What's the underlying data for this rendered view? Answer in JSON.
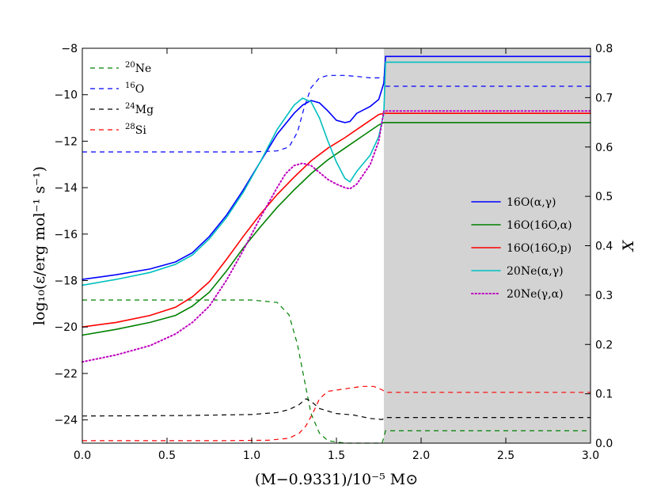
{
  "chart_data": {
    "type": "line",
    "xlabel": "(M−0.9331)/10⁻⁵ M⊙",
    "ylabel_left": "log₁₀(ε/erg mol⁻¹ s⁻¹)",
    "ylabel_right": "X",
    "xlim": [
      0.0,
      3.0
    ],
    "ylim_left": [
      -25.0,
      -8.0
    ],
    "ylim_right": [
      0.0,
      0.8
    ],
    "xticks": [
      "0.0",
      "0.5",
      "1.0",
      "1.5",
      "2.0",
      "2.5",
      "3.0"
    ],
    "yticks_left": [
      "-8",
      "-10",
      "-12",
      "-14",
      "-16",
      "-18",
      "-20",
      "-22",
      "-24"
    ],
    "yticks_right": [
      "0.0",
      "0.1",
      "0.2",
      "0.3",
      "0.4",
      "0.5",
      "0.6",
      "0.7",
      "0.8"
    ],
    "shaded_region": {
      "x_start": 1.78,
      "x_end": 3.0,
      "color": "#d3d3d3"
    },
    "rate_series": [
      {
        "name": "16O(α,γ)",
        "color": "#0000ff",
        "style": "solid",
        "x": [
          0,
          0.2,
          0.4,
          0.55,
          0.65,
          0.75,
          0.85,
          0.95,
          1.05,
          1.15,
          1.25,
          1.3,
          1.35,
          1.4,
          1.45,
          1.5,
          1.55,
          1.58,
          1.62,
          1.7,
          1.75,
          1.78,
          1.79,
          3.0
        ],
        "y": [
          -17.95,
          -17.75,
          -17.5,
          -17.2,
          -16.8,
          -16.1,
          -15.2,
          -14.1,
          -12.9,
          -11.7,
          -10.8,
          -10.45,
          -10.25,
          -10.35,
          -10.7,
          -11.1,
          -11.2,
          -11.15,
          -10.8,
          -10.5,
          -10.2,
          -9.5,
          -8.35,
          -8.35
        ]
      },
      {
        "name": "16O(16O,α)",
        "color": "#008000",
        "style": "solid",
        "x": [
          0,
          0.2,
          0.4,
          0.55,
          0.65,
          0.75,
          0.85,
          0.95,
          1.05,
          1.15,
          1.25,
          1.35,
          1.45,
          1.55,
          1.65,
          1.75,
          1.78,
          3.0
        ],
        "y": [
          -20.35,
          -20.1,
          -19.8,
          -19.5,
          -19.1,
          -18.5,
          -17.6,
          -16.6,
          -15.7,
          -14.85,
          -14.1,
          -13.4,
          -12.8,
          -12.3,
          -11.8,
          -11.3,
          -11.2,
          -11.2
        ]
      },
      {
        "name": "16O(16O,p)",
        "color": "#ff0000",
        "style": "solid",
        "x": [
          0,
          0.2,
          0.4,
          0.55,
          0.65,
          0.75,
          0.85,
          0.95,
          1.05,
          1.15,
          1.25,
          1.35,
          1.45,
          1.55,
          1.65,
          1.75,
          1.78,
          3.0
        ],
        "y": [
          -20.0,
          -19.8,
          -19.5,
          -19.15,
          -18.7,
          -18.05,
          -17.1,
          -16.1,
          -15.15,
          -14.3,
          -13.55,
          -12.85,
          -12.3,
          -11.85,
          -11.35,
          -10.85,
          -10.8,
          -10.8
        ]
      },
      {
        "name": "20Ne(α,γ)",
        "color": "#00bfbf",
        "style": "solid",
        "x": [
          0,
          0.2,
          0.4,
          0.55,
          0.65,
          0.75,
          0.85,
          0.95,
          1.05,
          1.15,
          1.25,
          1.3,
          1.35,
          1.4,
          1.45,
          1.5,
          1.55,
          1.58,
          1.62,
          1.7,
          1.75,
          1.78,
          1.79,
          3.0
        ],
        "y": [
          -18.2,
          -17.95,
          -17.65,
          -17.3,
          -16.9,
          -16.2,
          -15.3,
          -14.2,
          -12.9,
          -11.5,
          -10.45,
          -10.15,
          -10.3,
          -11.0,
          -12.0,
          -12.9,
          -13.6,
          -13.75,
          -13.3,
          -12.6,
          -11.8,
          -10.8,
          -8.6,
          -8.6
        ]
      },
      {
        "name": "20Ne(γ,α)",
        "color": "#bf00bf",
        "style": "dotted",
        "x": [
          0,
          0.2,
          0.4,
          0.55,
          0.65,
          0.75,
          0.85,
          0.95,
          1.05,
          1.15,
          1.2,
          1.25,
          1.3,
          1.35,
          1.4,
          1.45,
          1.5,
          1.55,
          1.58,
          1.62,
          1.7,
          1.75,
          1.78,
          3.0
        ],
        "y": [
          -21.5,
          -21.2,
          -20.8,
          -20.3,
          -19.8,
          -19.1,
          -18.0,
          -16.7,
          -15.3,
          -14.0,
          -13.4,
          -13.05,
          -12.95,
          -13.05,
          -13.35,
          -13.65,
          -13.85,
          -14.0,
          -14.05,
          -13.85,
          -13.0,
          -12.0,
          -10.7,
          -10.7
        ]
      }
    ],
    "abundance_series": [
      {
        "name": "20Ne",
        "color": "#008000",
        "style": "dashed",
        "x": [
          0,
          1.0,
          1.15,
          1.22,
          1.27,
          1.31,
          1.35,
          1.4,
          1.45,
          1.55,
          1.7,
          1.77,
          1.79,
          3.0
        ],
        "y": [
          0.29,
          0.29,
          0.285,
          0.26,
          0.2,
          0.13,
          0.06,
          0.02,
          0.005,
          0.0,
          0.0,
          0.0,
          0.025,
          0.025
        ]
      },
      {
        "name": "16O",
        "color": "#0000ff",
        "style": "dashed",
        "x": [
          0,
          1.0,
          1.15,
          1.22,
          1.27,
          1.31,
          1.35,
          1.4,
          1.45,
          1.55,
          1.65,
          1.7,
          1.78,
          1.79,
          3.0
        ],
        "y": [
          0.59,
          0.59,
          0.592,
          0.6,
          0.63,
          0.68,
          0.72,
          0.74,
          0.745,
          0.745,
          0.742,
          0.74,
          0.74,
          0.723,
          0.723
        ]
      },
      {
        "name": "24Mg",
        "color": "#000000",
        "style": "dashed",
        "x": [
          0,
          0.6,
          1.0,
          1.15,
          1.22,
          1.28,
          1.32,
          1.35,
          1.4,
          1.5,
          1.6,
          1.7,
          1.77,
          1.79,
          3.0
        ],
        "y": [
          0.055,
          0.056,
          0.058,
          0.062,
          0.068,
          0.078,
          0.09,
          0.085,
          0.07,
          0.06,
          0.057,
          0.05,
          0.048,
          0.052,
          0.052
        ]
      },
      {
        "name": "28Si",
        "color": "#ff0000",
        "style": "dashed",
        "x": [
          0,
          0.8,
          1.1,
          1.22,
          1.28,
          1.32,
          1.36,
          1.4,
          1.45,
          1.55,
          1.65,
          1.72,
          1.77,
          1.79,
          3.0
        ],
        "y": [
          0.005,
          0.005,
          0.006,
          0.01,
          0.02,
          0.035,
          0.06,
          0.09,
          0.105,
          0.11,
          0.115,
          0.115,
          0.108,
          0.103,
          0.103
        ]
      }
    ],
    "legend_left": [
      {
        "label": "20Ne",
        "sup": "20",
        "base": "Ne",
        "color": "#008000"
      },
      {
        "label": "16O",
        "sup": "16",
        "base": "O",
        "color": "#0000ff"
      },
      {
        "label": "24Mg",
        "sup": "24",
        "base": "Mg",
        "color": "#000000"
      },
      {
        "label": "28Si",
        "sup": "28",
        "base": "Si",
        "color": "#ff0000"
      }
    ],
    "legend_right": [
      {
        "label": "16O(α,γ)",
        "color": "#0000ff",
        "style": "solid"
      },
      {
        "label": "16O(16O,α)",
        "color": "#008000",
        "style": "solid"
      },
      {
        "label": "16O(16O,p)",
        "color": "#ff0000",
        "style": "solid"
      },
      {
        "label": "20Ne(α,γ)",
        "color": "#00bfbf",
        "style": "solid"
      },
      {
        "label": "20Ne(γ,α)",
        "color": "#bf00bf",
        "style": "dotted"
      }
    ]
  }
}
